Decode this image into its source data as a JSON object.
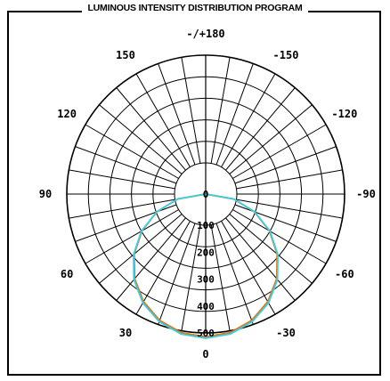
{
  "title": "LUMINOUS INTENSITY DISTRIBUTION PROGRAM",
  "chart_data": {
    "type": "polar",
    "angle_labels": [
      {
        "deg": 180,
        "text": "-/+180"
      },
      {
        "deg": 150,
        "text": "150"
      },
      {
        "deg": -150,
        "text": "-150"
      },
      {
        "deg": 120,
        "text": "120"
      },
      {
        "deg": -120,
        "text": "-120"
      },
      {
        "deg": 90,
        "text": "90"
      },
      {
        "deg": -90,
        "text": "-90"
      },
      {
        "deg": 60,
        "text": "60"
      },
      {
        "deg": -60,
        "text": "-60"
      },
      {
        "deg": 30,
        "text": "30"
      },
      {
        "deg": -30,
        "text": "-30"
      },
      {
        "deg": 0,
        "text": "0"
      }
    ],
    "radial_ticks": [
      0,
      100,
      200,
      300,
      400,
      500
    ],
    "rmax": 500,
    "grid": true,
    "series": [
      {
        "color": "#e0761a",
        "angles": [
          0,
          10,
          20,
          30,
          40,
          50,
          60,
          70,
          80,
          90
        ],
        "values": [
          515,
          507,
          484,
          446,
          395,
          331,
          258,
          177,
          90,
          0
        ]
      },
      {
        "color": "#35d0e8",
        "angles": [
          0,
          10,
          20,
          30,
          40,
          50,
          60,
          70,
          80,
          90
        ],
        "values": [
          520,
          512,
          489,
          451,
          399,
          334,
          260,
          178,
          90,
          0
        ]
      }
    ]
  }
}
